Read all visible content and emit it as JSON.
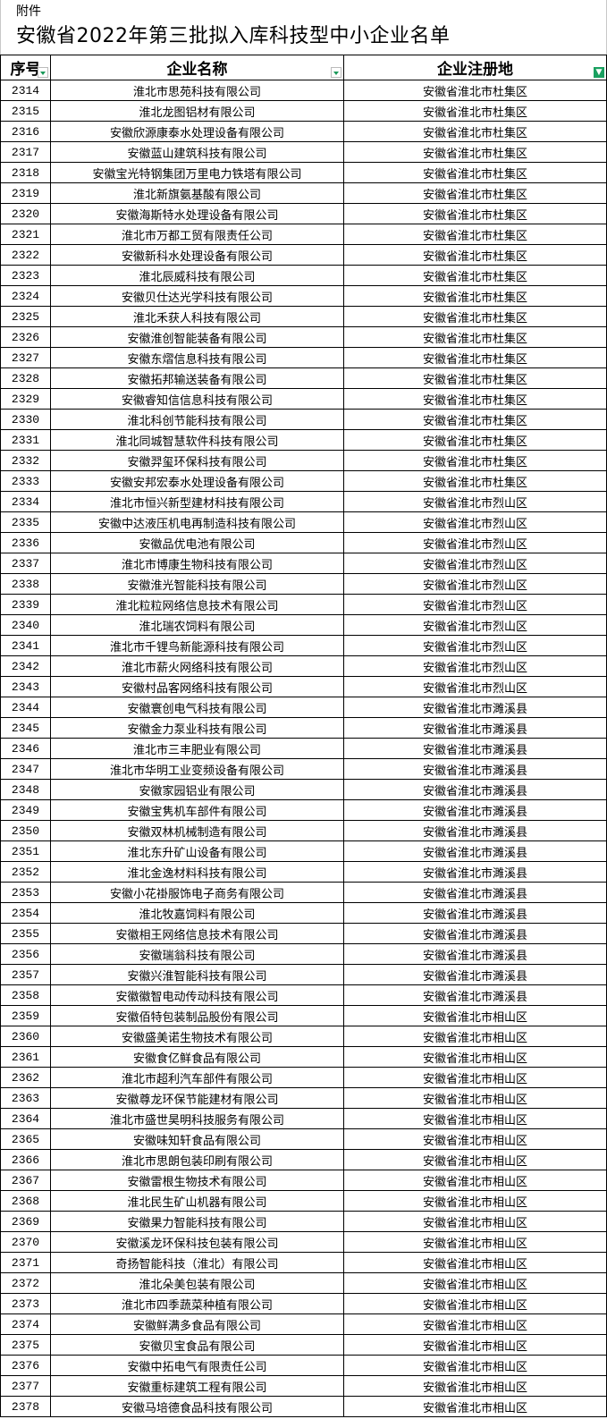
{
  "attachment_label": "附件",
  "title": "安徽省2022年第三批拟入库科技型中小企业名单",
  "columns": [
    "序号",
    "企业名称",
    "企业注册地"
  ],
  "accent_filter_color": "#1aa060",
  "rows": [
    [
      "2314",
      "淮北市思苑科技有限公司",
      "安徽省淮北市杜集区"
    ],
    [
      "2315",
      "淮北龙图铝材有限公司",
      "安徽省淮北市杜集区"
    ],
    [
      "2316",
      "安徽欣源康泰水处理设备有限公司",
      "安徽省淮北市杜集区"
    ],
    [
      "2317",
      "安徽蓝山建筑科技有限公司",
      "安徽省淮北市杜集区"
    ],
    [
      "2318",
      "安徽宝光特钢集团万里电力铁塔有限公司",
      "安徽省淮北市杜集区"
    ],
    [
      "2319",
      "淮北新旗氨基酸有限公司",
      "安徽省淮北市杜集区"
    ],
    [
      "2320",
      "安徽海斯特水处理设备有限公司",
      "安徽省淮北市杜集区"
    ],
    [
      "2321",
      "淮北市万都工贸有限责任公司",
      "安徽省淮北市杜集区"
    ],
    [
      "2322",
      "安徽新科水处理设备有限公司",
      "安徽省淮北市杜集区"
    ],
    [
      "2323",
      "淮北辰威科技有限公司",
      "安徽省淮北市杜集区"
    ],
    [
      "2324",
      "安徽贝仕达光学科技有限公司",
      "安徽省淮北市杜集区"
    ],
    [
      "2325",
      "淮北禾获人科技有限公司",
      "安徽省淮北市杜集区"
    ],
    [
      "2326",
      "安徽淮创智能装备有限公司",
      "安徽省淮北市杜集区"
    ],
    [
      "2327",
      "安徽东熠信息科技有限公司",
      "安徽省淮北市杜集区"
    ],
    [
      "2328",
      "安徽拓邦输送装备有限公司",
      "安徽省淮北市杜集区"
    ],
    [
      "2329",
      "安徽睿知信信息科技有限公司",
      "安徽省淮北市杜集区"
    ],
    [
      "2330",
      "淮北科创节能科技有限公司",
      "安徽省淮北市杜集区"
    ],
    [
      "2331",
      "淮北同城智慧软件科技有限公司",
      "安徽省淮北市杜集区"
    ],
    [
      "2332",
      "安徽羿玺环保科技有限公司",
      "安徽省淮北市杜集区"
    ],
    [
      "2333",
      "安徽安邦宏泰水处理设备有限公司",
      "安徽省淮北市杜集区"
    ],
    [
      "2334",
      "淮北市恒兴新型建材科技有限公司",
      "安徽省淮北市烈山区"
    ],
    [
      "2335",
      "安徽中达液压机电再制造科技有限公司",
      "安徽省淮北市烈山区"
    ],
    [
      "2336",
      "安徽品优电池有限公司",
      "安徽省淮北市烈山区"
    ],
    [
      "2337",
      "淮北市博康生物科技有限公司",
      "安徽省淮北市烈山区"
    ],
    [
      "2338",
      "安徽淮光智能科技有限公司",
      "安徽省淮北市烈山区"
    ],
    [
      "2339",
      "淮北粒粒网络信息技术有限公司",
      "安徽省淮北市烈山区"
    ],
    [
      "2340",
      "淮北瑞农饲料有限公司",
      "安徽省淮北市烈山区"
    ],
    [
      "2341",
      "淮北市千锂鸟新能源科技有限公司",
      "安徽省淮北市烈山区"
    ],
    [
      "2342",
      "淮北市薪火网络科技有限公司",
      "安徽省淮北市烈山区"
    ],
    [
      "2343",
      "安徽村品客网络科技有限公司",
      "安徽省淮北市烈山区"
    ],
    [
      "2344",
      "安徽寰创电气科技有限公司",
      "安徽省淮北市濉溪县"
    ],
    [
      "2345",
      "安徽金力泵业科技有限公司",
      "安徽省淮北市濉溪县"
    ],
    [
      "2346",
      "淮北市三丰肥业有限公司",
      "安徽省淮北市濉溪县"
    ],
    [
      "2347",
      "淮北市华明工业变频设备有限公司",
      "安徽省淮北市濉溪县"
    ],
    [
      "2348",
      "安徽家园铝业有限公司",
      "安徽省淮北市濉溪县"
    ],
    [
      "2349",
      "安徽宝隽机车部件有限公司",
      "安徽省淮北市濉溪县"
    ],
    [
      "2350",
      "安徽双林机械制造有限公司",
      "安徽省淮北市濉溪县"
    ],
    [
      "2351",
      "淮北东升矿山设备有限公司",
      "安徽省淮北市濉溪县"
    ],
    [
      "2352",
      "淮北金逸材料科技有限公司",
      "安徽省淮北市濉溪县"
    ],
    [
      "2353",
      "安徽小花褂服饰电子商务有限公司",
      "安徽省淮北市濉溪县"
    ],
    [
      "2354",
      "淮北牧嘉饲料有限公司",
      "安徽省淮北市濉溪县"
    ],
    [
      "2355",
      "安徽相王网络信息技术有限公司",
      "安徽省淮北市濉溪县"
    ],
    [
      "2356",
      "安徽瑞翁科技有限公司",
      "安徽省淮北市濉溪县"
    ],
    [
      "2357",
      "安徽兴淮智能科技有限公司",
      "安徽省淮北市濉溪县"
    ],
    [
      "2358",
      "安徽徽智电动传动科技有限公司",
      "安徽省淮北市濉溪县"
    ],
    [
      "2359",
      "安徽佰特包装制品股份有限公司",
      "安徽省淮北市相山区"
    ],
    [
      "2360",
      "安徽盛美诺生物技术有限公司",
      "安徽省淮北市相山区"
    ],
    [
      "2361",
      "安徽食亿鲜食品有限公司",
      "安徽省淮北市相山区"
    ],
    [
      "2362",
      "淮北市超利汽车部件有限公司",
      "安徽省淮北市相山区"
    ],
    [
      "2363",
      "安徽尊龙环保节能建材有限公司",
      "安徽省淮北市相山区"
    ],
    [
      "2364",
      "淮北市盛世昊明科技服务有限公司",
      "安徽省淮北市相山区"
    ],
    [
      "2365",
      "安徽味知轩食品有限公司",
      "安徽省淮北市相山区"
    ],
    [
      "2366",
      "淮北市思朗包装印刷有限公司",
      "安徽省淮北市相山区"
    ],
    [
      "2367",
      "安徽雷根生物技术有限公司",
      "安徽省淮北市相山区"
    ],
    [
      "2368",
      "淮北民生矿山机器有限公司",
      "安徽省淮北市相山区"
    ],
    [
      "2369",
      "安徽果力智能科技有限公司",
      "安徽省淮北市相山区"
    ],
    [
      "2370",
      "安徽溪龙环保科技包装有限公司",
      "安徽省淮北市相山区"
    ],
    [
      "2371",
      "奇扬智能科技（淮北）有限公司",
      "安徽省淮北市相山区"
    ],
    [
      "2372",
      "淮北朵美包装有限公司",
      "安徽省淮北市相山区"
    ],
    [
      "2373",
      "淮北市四季蔬菜种植有限公司",
      "安徽省淮北市相山区"
    ],
    [
      "2374",
      "安徽鲜满多食品有限公司",
      "安徽省淮北市相山区"
    ],
    [
      "2375",
      "安徽贝宝食品有限公司",
      "安徽省淮北市相山区"
    ],
    [
      "2376",
      "安徽中拓电气有限责任公司",
      "安徽省淮北市相山区"
    ],
    [
      "2377",
      "安徽重标建筑工程有限公司",
      "安徽省淮北市相山区"
    ],
    [
      "2378",
      "安徽马培德食品科技有限公司",
      "安徽省淮北市相山区"
    ]
  ]
}
